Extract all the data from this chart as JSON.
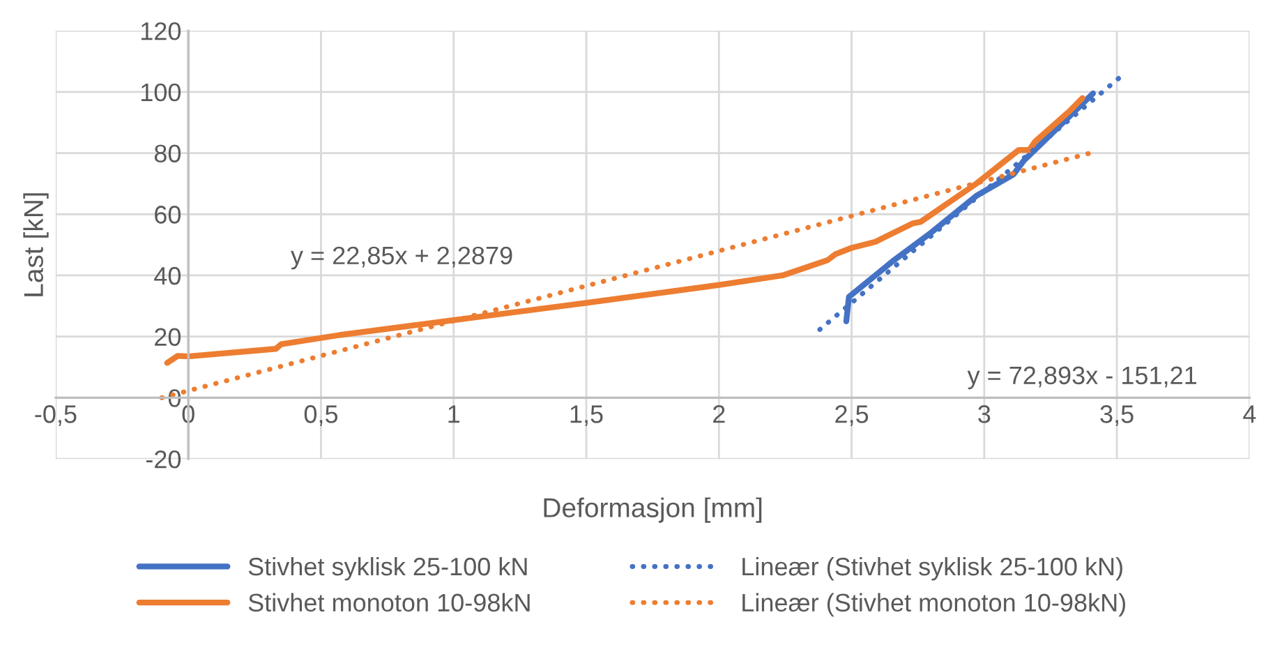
{
  "chart_data": {
    "type": "line",
    "xlabel": "Deformasjon [mm]",
    "ylabel": "Last [kN]",
    "xlim": [
      -0.5,
      4
    ],
    "ylim": [
      -20,
      120
    ],
    "xticks": [
      {
        "value": -0.5,
        "label": "-0,5"
      },
      0,
      {
        "value": 0.5,
        "label": "0,5"
      },
      1,
      {
        "value": 1.5,
        "label": "1,5"
      },
      2,
      {
        "value": 2.5,
        "label": "2,5"
      },
      3,
      {
        "value": 3.5,
        "label": "3,5"
      },
      4
    ],
    "yticks": [
      -20,
      0,
      20,
      40,
      60,
      80,
      100,
      120
    ],
    "grid": true,
    "legend": "bottom",
    "marker": "none",
    "series": [
      {
        "name": "Stivhet syklisk 25-100 kN",
        "color": "#4472c4",
        "line_style": "solid",
        "x": [
          2.48,
          2.49,
          2.66,
          2.8,
          2.97,
          3.11,
          3.15,
          3.25,
          3.41
        ],
        "values": [
          25,
          33,
          45,
          54,
          66,
          73,
          77.6,
          86,
          99.5
        ]
      },
      {
        "name": "Stivhet monoton 10-98kN",
        "color": "#ed7d31",
        "line_style": "solid",
        "x": [
          -0.08,
          -0.04,
          0,
          0.33,
          0.35,
          0.57,
          1.01,
          1.5,
          2.01,
          2.24,
          2.41,
          2.44,
          2.5,
          2.59,
          2.73,
          2.76,
          2.97,
          3.13,
          3.17,
          3.19,
          3.32,
          3.37
        ],
        "values": [
          11.4,
          13.7,
          13.5,
          16,
          17.5,
          20.5,
          25.5,
          31,
          37,
          40,
          45,
          47,
          49,
          51,
          57,
          57.5,
          70,
          81,
          81,
          83.6,
          93.6,
          98
        ]
      },
      {
        "name": "Lineær (Stivhet syklisk 25-100 kN)",
        "color": "#4472c4",
        "line_style": "dotted",
        "x": [
          2.38,
          3.52
        ],
        "values": [
          22.3,
          105.4
        ]
      },
      {
        "name": "Lineær (Stivhet monoton 10-98kN)",
        "color": "#ed7d31",
        "line_style": "dotted",
        "x": [
          -0.1,
          3.4
        ],
        "values": [
          0,
          80
        ]
      }
    ],
    "annotations": [
      "y = 22,85x + 2,2879",
      "y = 72,893x - 151,21"
    ]
  }
}
